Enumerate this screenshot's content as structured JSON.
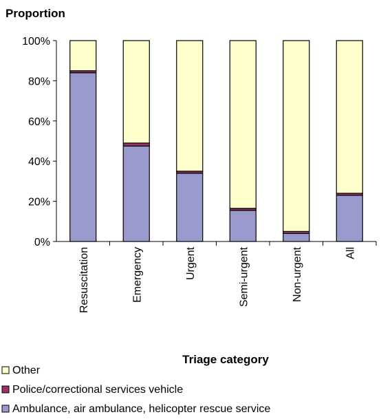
{
  "chart_data": {
    "type": "bar",
    "stacked": true,
    "ylabel": "Proportion",
    "xlabel": "Triage category",
    "ylim": [
      0,
      100
    ],
    "yticks": [
      "0%",
      "20%",
      "40%",
      "60%",
      "80%",
      "100%"
    ],
    "categories": [
      "Resuscitation",
      "Emergency",
      "Urgent",
      "Semi-urgent",
      "Non-urgent",
      "All"
    ],
    "series": [
      {
        "name": "Ambulance, air ambulance, helicopter rescue service",
        "color": "#9999cc",
        "values": [
          84,
          47.5,
          34,
          15.5,
          4,
          23
        ]
      },
      {
        "name": "Police/correctional services vehicle",
        "color": "#993366",
        "values": [
          1,
          1.5,
          1,
          1,
          1,
          1
        ]
      },
      {
        "name": "Other",
        "color": "#ffffcc",
        "values": [
          15,
          51,
          65,
          83.5,
          95,
          76
        ]
      }
    ],
    "legend": [
      "Other",
      "Police/correctional services vehicle",
      "Ambulance, air ambulance, helicopter rescue service"
    ],
    "legend_position": "bottom-left"
  }
}
